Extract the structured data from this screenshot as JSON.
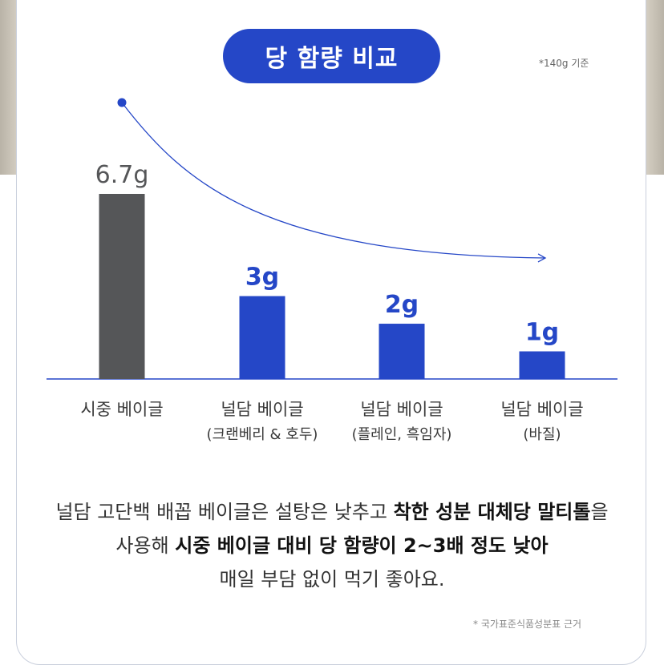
{
  "title": "당 함량 비교",
  "basis_note": "*140g 기준",
  "source_note": "* 국가표준식품성분표 근거",
  "colors": {
    "accent": "#2547c7",
    "market_bar": "#555658",
    "axis": "#2547c7"
  },
  "chart_data": {
    "type": "bar",
    "title": "당 함량 비교",
    "categories": [
      {
        "name": "시중 베이글",
        "sub": ""
      },
      {
        "name": "널담 베이글",
        "sub": "(크랜베리 & 호두)"
      },
      {
        "name": "널담 베이글",
        "sub": "(플레인, 흑임자)"
      },
      {
        "name": "널담 베이글",
        "sub": "(바질)"
      }
    ],
    "values": [
      6.7,
      3,
      2,
      1
    ],
    "value_labels": [
      "6.7g",
      "3g",
      "2g",
      "1g"
    ],
    "unit": "g",
    "bar_colors": [
      "#555658",
      "#2547c7",
      "#2547c7",
      "#2547c7"
    ],
    "ylim": [
      0,
      6.7
    ],
    "grid": false,
    "legend": "none",
    "annotation": "decreasing trend arrow"
  },
  "description": {
    "line1_plain": "널담 고단백 배꼽 베이글은 설탕은 낮추고 ",
    "line1_bold": "착한 성분 대체당 말티톨",
    "line1_end": "을",
    "line2_plain": "사용해 ",
    "line2_bold": "시중 베이글 대비 당 함량이 2~3배 정도 낮아",
    "line3": "매일 부담 없이 먹기 좋아요."
  }
}
